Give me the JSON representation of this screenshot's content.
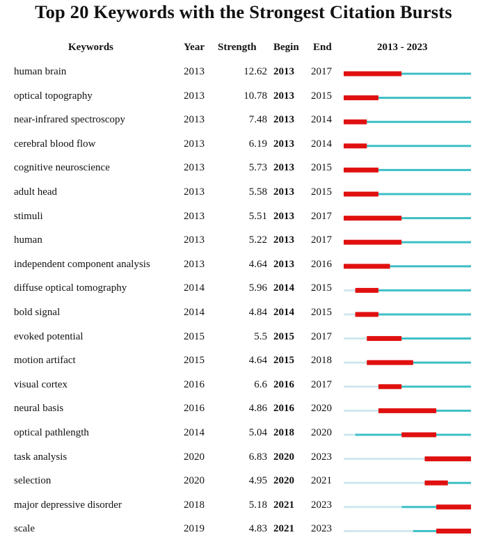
{
  "title": "Top 20 Keywords with the Strongest Citation Bursts",
  "headers": {
    "keywords": "Keywords",
    "year": "Year",
    "strength": "Strength",
    "begin": "Begin",
    "end": "End",
    "range": "2013 - 2023"
  },
  "colors": {
    "burst": "#e01010",
    "active": "#3cbfc4",
    "inactive": "#cfe8ec"
  },
  "chart_data": {
    "type": "table",
    "timeline_start": 2013,
    "timeline_end": 2023,
    "columns": [
      "Keywords",
      "Year",
      "Strength",
      "Begin",
      "End",
      "2013 - 2023"
    ],
    "rows": [
      {
        "keyword": "human brain",
        "year": 2013,
        "strength": "12.62",
        "begin": 2013,
        "end": 2017
      },
      {
        "keyword": "optical topography",
        "year": 2013,
        "strength": "10.78",
        "begin": 2013,
        "end": 2015
      },
      {
        "keyword": "near-infrared spectroscopy",
        "year": 2013,
        "strength": "7.48",
        "begin": 2013,
        "end": 2014
      },
      {
        "keyword": "cerebral blood flow",
        "year": 2013,
        "strength": "6.19",
        "begin": 2013,
        "end": 2014
      },
      {
        "keyword": "cognitive neuroscience",
        "year": 2013,
        "strength": "5.73",
        "begin": 2013,
        "end": 2015
      },
      {
        "keyword": "adult head",
        "year": 2013,
        "strength": "5.58",
        "begin": 2013,
        "end": 2015
      },
      {
        "keyword": "stimuli",
        "year": 2013,
        "strength": "5.51",
        "begin": 2013,
        "end": 2017
      },
      {
        "keyword": "human",
        "year": 2013,
        "strength": "5.22",
        "begin": 2013,
        "end": 2017
      },
      {
        "keyword": "independent component analysis",
        "year": 2013,
        "strength": "4.64",
        "begin": 2013,
        "end": 2016
      },
      {
        "keyword": "diffuse optical tomography",
        "year": 2014,
        "strength": "5.96",
        "begin": 2014,
        "end": 2015
      },
      {
        "keyword": "bold signal",
        "year": 2014,
        "strength": "4.84",
        "begin": 2014,
        "end": 2015
      },
      {
        "keyword": "evoked potential",
        "year": 2015,
        "strength": "5.5",
        "begin": 2015,
        "end": 2017
      },
      {
        "keyword": "motion artifact",
        "year": 2015,
        "strength": "4.64",
        "begin": 2015,
        "end": 2018
      },
      {
        "keyword": "visual cortex",
        "year": 2016,
        "strength": "6.6",
        "begin": 2016,
        "end": 2017
      },
      {
        "keyword": "neural basis",
        "year": 2016,
        "strength": "4.86",
        "begin": 2016,
        "end": 2020
      },
      {
        "keyword": "optical pathlength",
        "year": 2014,
        "strength": "5.04",
        "begin": 2018,
        "end": 2020
      },
      {
        "keyword": "task analysis",
        "year": 2020,
        "strength": "6.83",
        "begin": 2020,
        "end": 2023
      },
      {
        "keyword": "selection",
        "year": 2020,
        "strength": "4.95",
        "begin": 2020,
        "end": 2021
      },
      {
        "keyword": "major depressive disorder",
        "year": 2018,
        "strength": "5.18",
        "begin": 2021,
        "end": 2023
      },
      {
        "keyword": "scale",
        "year": 2019,
        "strength": "4.83",
        "begin": 2021,
        "end": 2023
      }
    ]
  }
}
